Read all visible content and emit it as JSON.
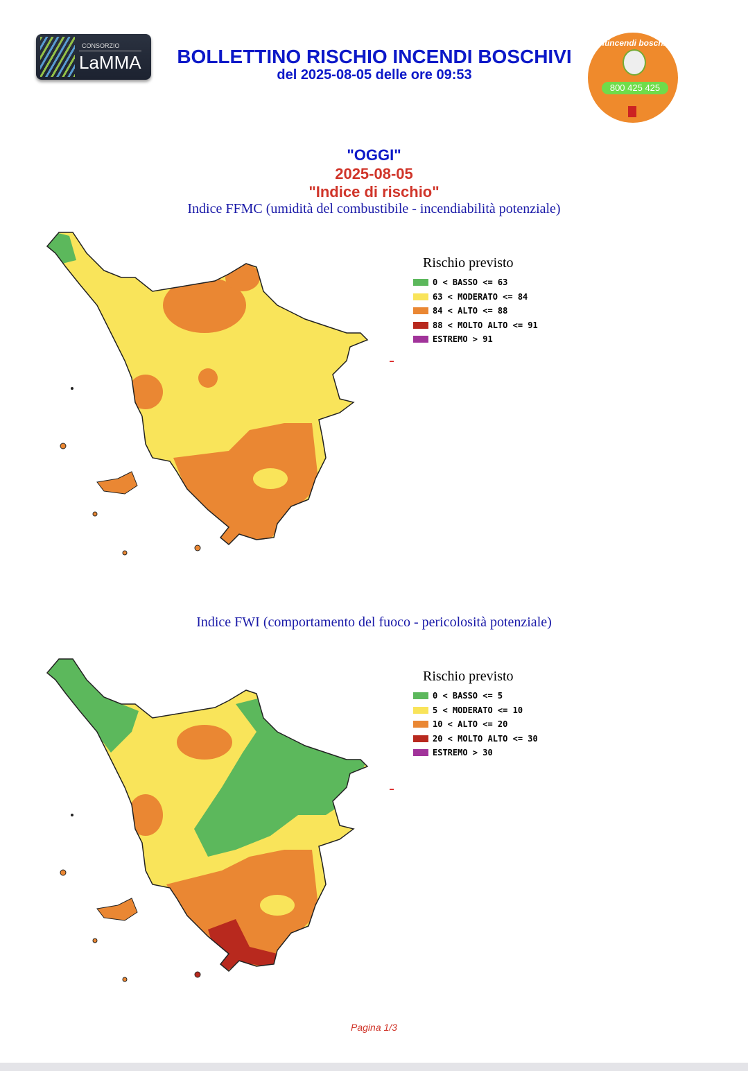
{
  "header": {
    "logo_small": "CONSORZIO",
    "logo_name": "LaMMA",
    "title": "BOLLETTINO RISCHIO INCENDI BOSCHIVI",
    "subtitle": "del 2025-08-05 delle ore 09:53",
    "badge_text": "Antincendi boschivi",
    "badge_phone": "800 425 425"
  },
  "section": {
    "day": "\"OGGI\"",
    "date": "2025-08-05",
    "heading": "\"Indice di rischio\""
  },
  "colors": {
    "basso": "#5cb85c",
    "moderato": "#f9e45a",
    "alto": "#ea8733",
    "molto_alto": "#b8291e",
    "estremo": "#a1339a"
  },
  "maps": [
    {
      "title": "Indice FFMC (umidità del combustibile - incendiabilità potenziale)",
      "legend_title": "Rischio previsto",
      "legend": [
        "0 < BASSO <= 63",
        "63 < MODERATO <= 84",
        "84 < ALTO <= 88",
        "88 < MOLTO ALTO <= 91",
        "ESTREMO > 91"
      ]
    },
    {
      "title": "Indice FWI (comportamento del fuoco - pericolosità potenziale)",
      "legend_title": "Rischio previsto",
      "legend": [
        "0 < BASSO <= 5",
        "5 < MODERATO <= 10",
        "10 < ALTO <= 20",
        "20 < MOLTO ALTO <= 30",
        "ESTREMO > 30"
      ]
    }
  ],
  "footer": "Pagina 1/3"
}
